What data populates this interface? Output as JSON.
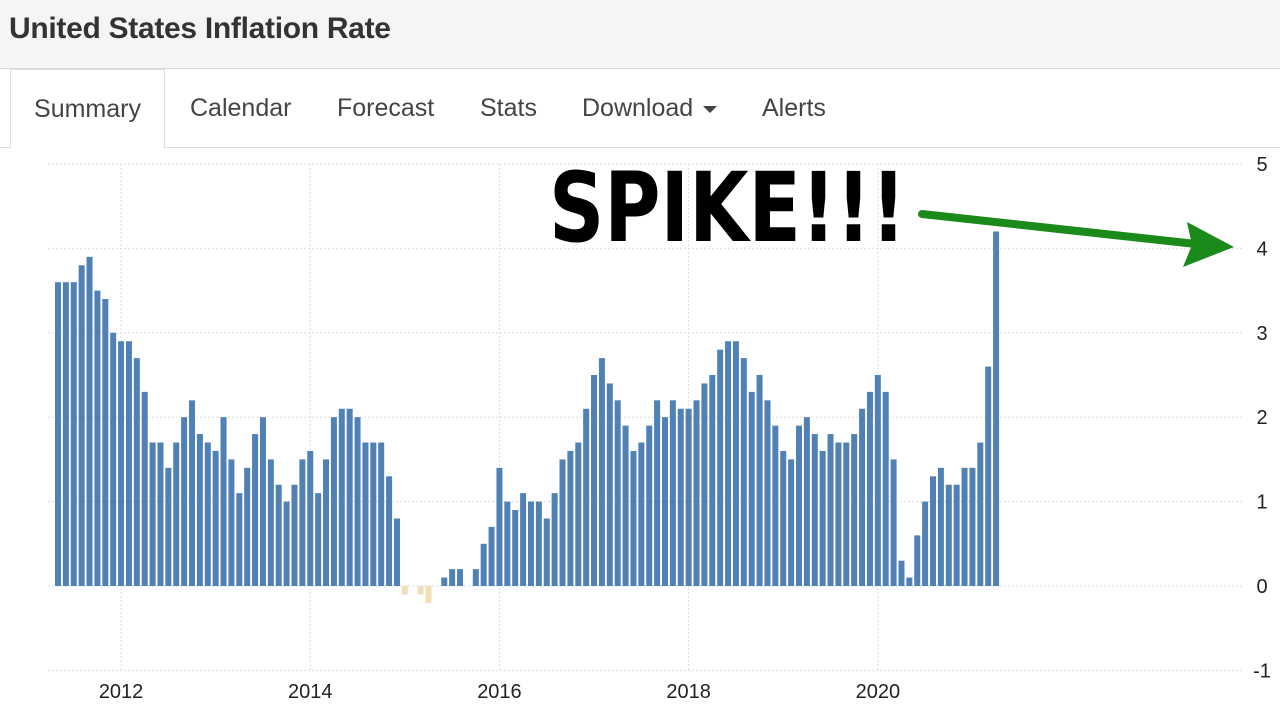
{
  "page_title": "United States Inflation Rate",
  "tabs": [
    {
      "label": "Summary",
      "active": true
    },
    {
      "label": "Calendar",
      "active": false
    },
    {
      "label": "Forecast",
      "active": false
    },
    {
      "label": "Stats",
      "active": false
    },
    {
      "label": "Download",
      "active": false,
      "has_dropdown": true
    },
    {
      "label": "Alerts",
      "active": false
    }
  ],
  "annotation": {
    "text": "SPIKE!!!",
    "arrow_color": "#1a8a1a"
  },
  "colors": {
    "positive_bar": "#4f81b5",
    "negative_bar": "#f1deb4",
    "grid": "#dddddd"
  },
  "chart_data": {
    "type": "bar",
    "title": "",
    "xlabel": "",
    "ylabel": "",
    "ylim": [
      -1,
      5
    ],
    "yticks": [
      5,
      4,
      3,
      2,
      1,
      0,
      -1
    ],
    "x_tick_labels": [
      "2012",
      "2014",
      "2016",
      "2018",
      "2020"
    ],
    "grid": true,
    "start_month": "2011-05",
    "end_month": "2021-04",
    "frequency": "monthly",
    "values": [
      3.6,
      3.6,
      3.6,
      3.8,
      3.9,
      3.5,
      3.4,
      3.0,
      2.9,
      2.9,
      2.7,
      2.3,
      1.7,
      1.7,
      1.4,
      1.7,
      2.0,
      2.2,
      1.8,
      1.7,
      1.6,
      2.0,
      1.5,
      1.1,
      1.4,
      1.8,
      2.0,
      1.5,
      1.2,
      1.0,
      1.2,
      1.5,
      1.6,
      1.1,
      1.5,
      2.0,
      2.1,
      2.1,
      2.0,
      1.7,
      1.7,
      1.7,
      1.3,
      0.8,
      -0.1,
      0.0,
      -0.1,
      -0.2,
      0.0,
      0.1,
      0.2,
      0.2,
      0.0,
      0.2,
      0.5,
      0.7,
      1.4,
      1.0,
      0.9,
      1.1,
      1.0,
      1.0,
      0.8,
      1.1,
      1.5,
      1.6,
      1.7,
      2.1,
      2.5,
      2.7,
      2.4,
      2.2,
      1.9,
      1.6,
      1.7,
      1.9,
      2.2,
      2.0,
      2.2,
      2.1,
      2.1,
      2.2,
      2.4,
      2.5,
      2.8,
      2.9,
      2.9,
      2.7,
      2.3,
      2.5,
      2.2,
      1.9,
      1.6,
      1.5,
      1.9,
      2.0,
      1.8,
      1.6,
      1.8,
      1.7,
      1.7,
      1.8,
      2.1,
      2.3,
      2.5,
      2.3,
      1.5,
      0.3,
      0.1,
      0.6,
      1.0,
      1.3,
      1.4,
      1.2,
      1.2,
      1.4,
      1.4,
      1.7,
      2.6,
      4.2
    ]
  }
}
